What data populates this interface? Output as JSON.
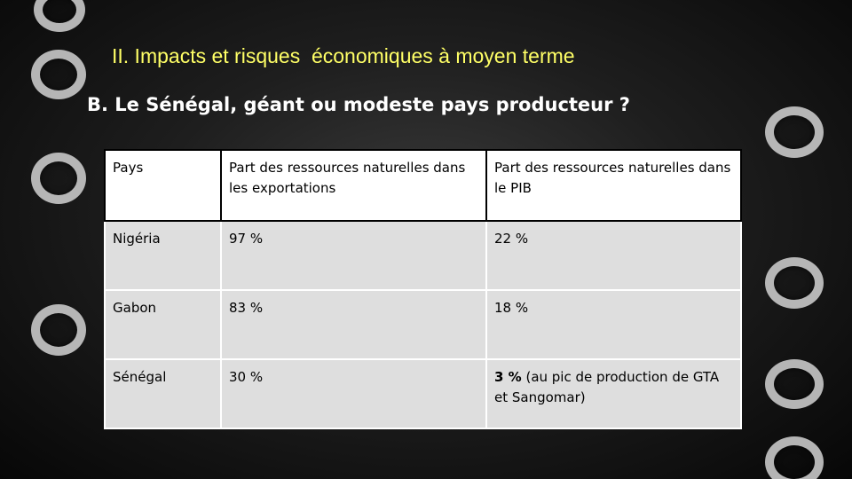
{
  "slide": {
    "kicker": "II. Impacts et risques  économiques à moyen terme",
    "title": "B. Le Sénégal, géant ou modeste pays producteur ?",
    "colors": {
      "kicker": "#ffff66",
      "title": "#ffffff",
      "header_bg": "#ffffff",
      "row_bg": "#dedede",
      "text": "#000000"
    }
  },
  "table": {
    "headers": [
      "Pays",
      "Part des ressources naturelles dans les exportations",
      "Part des ressources naturelles dans le PIB"
    ],
    "rows": [
      {
        "country": "Nigéria",
        "exports": "97 %",
        "gdp": "22 %",
        "gdp_note": ""
      },
      {
        "country": "Gabon",
        "exports": "83 %",
        "gdp": "18 %",
        "gdp_note": ""
      },
      {
        "country": "Sénégal",
        "exports": "30 %",
        "gdp": "3 %",
        "gdp_note": " (au pic de production de GTA et Sangomar)"
      }
    ]
  }
}
